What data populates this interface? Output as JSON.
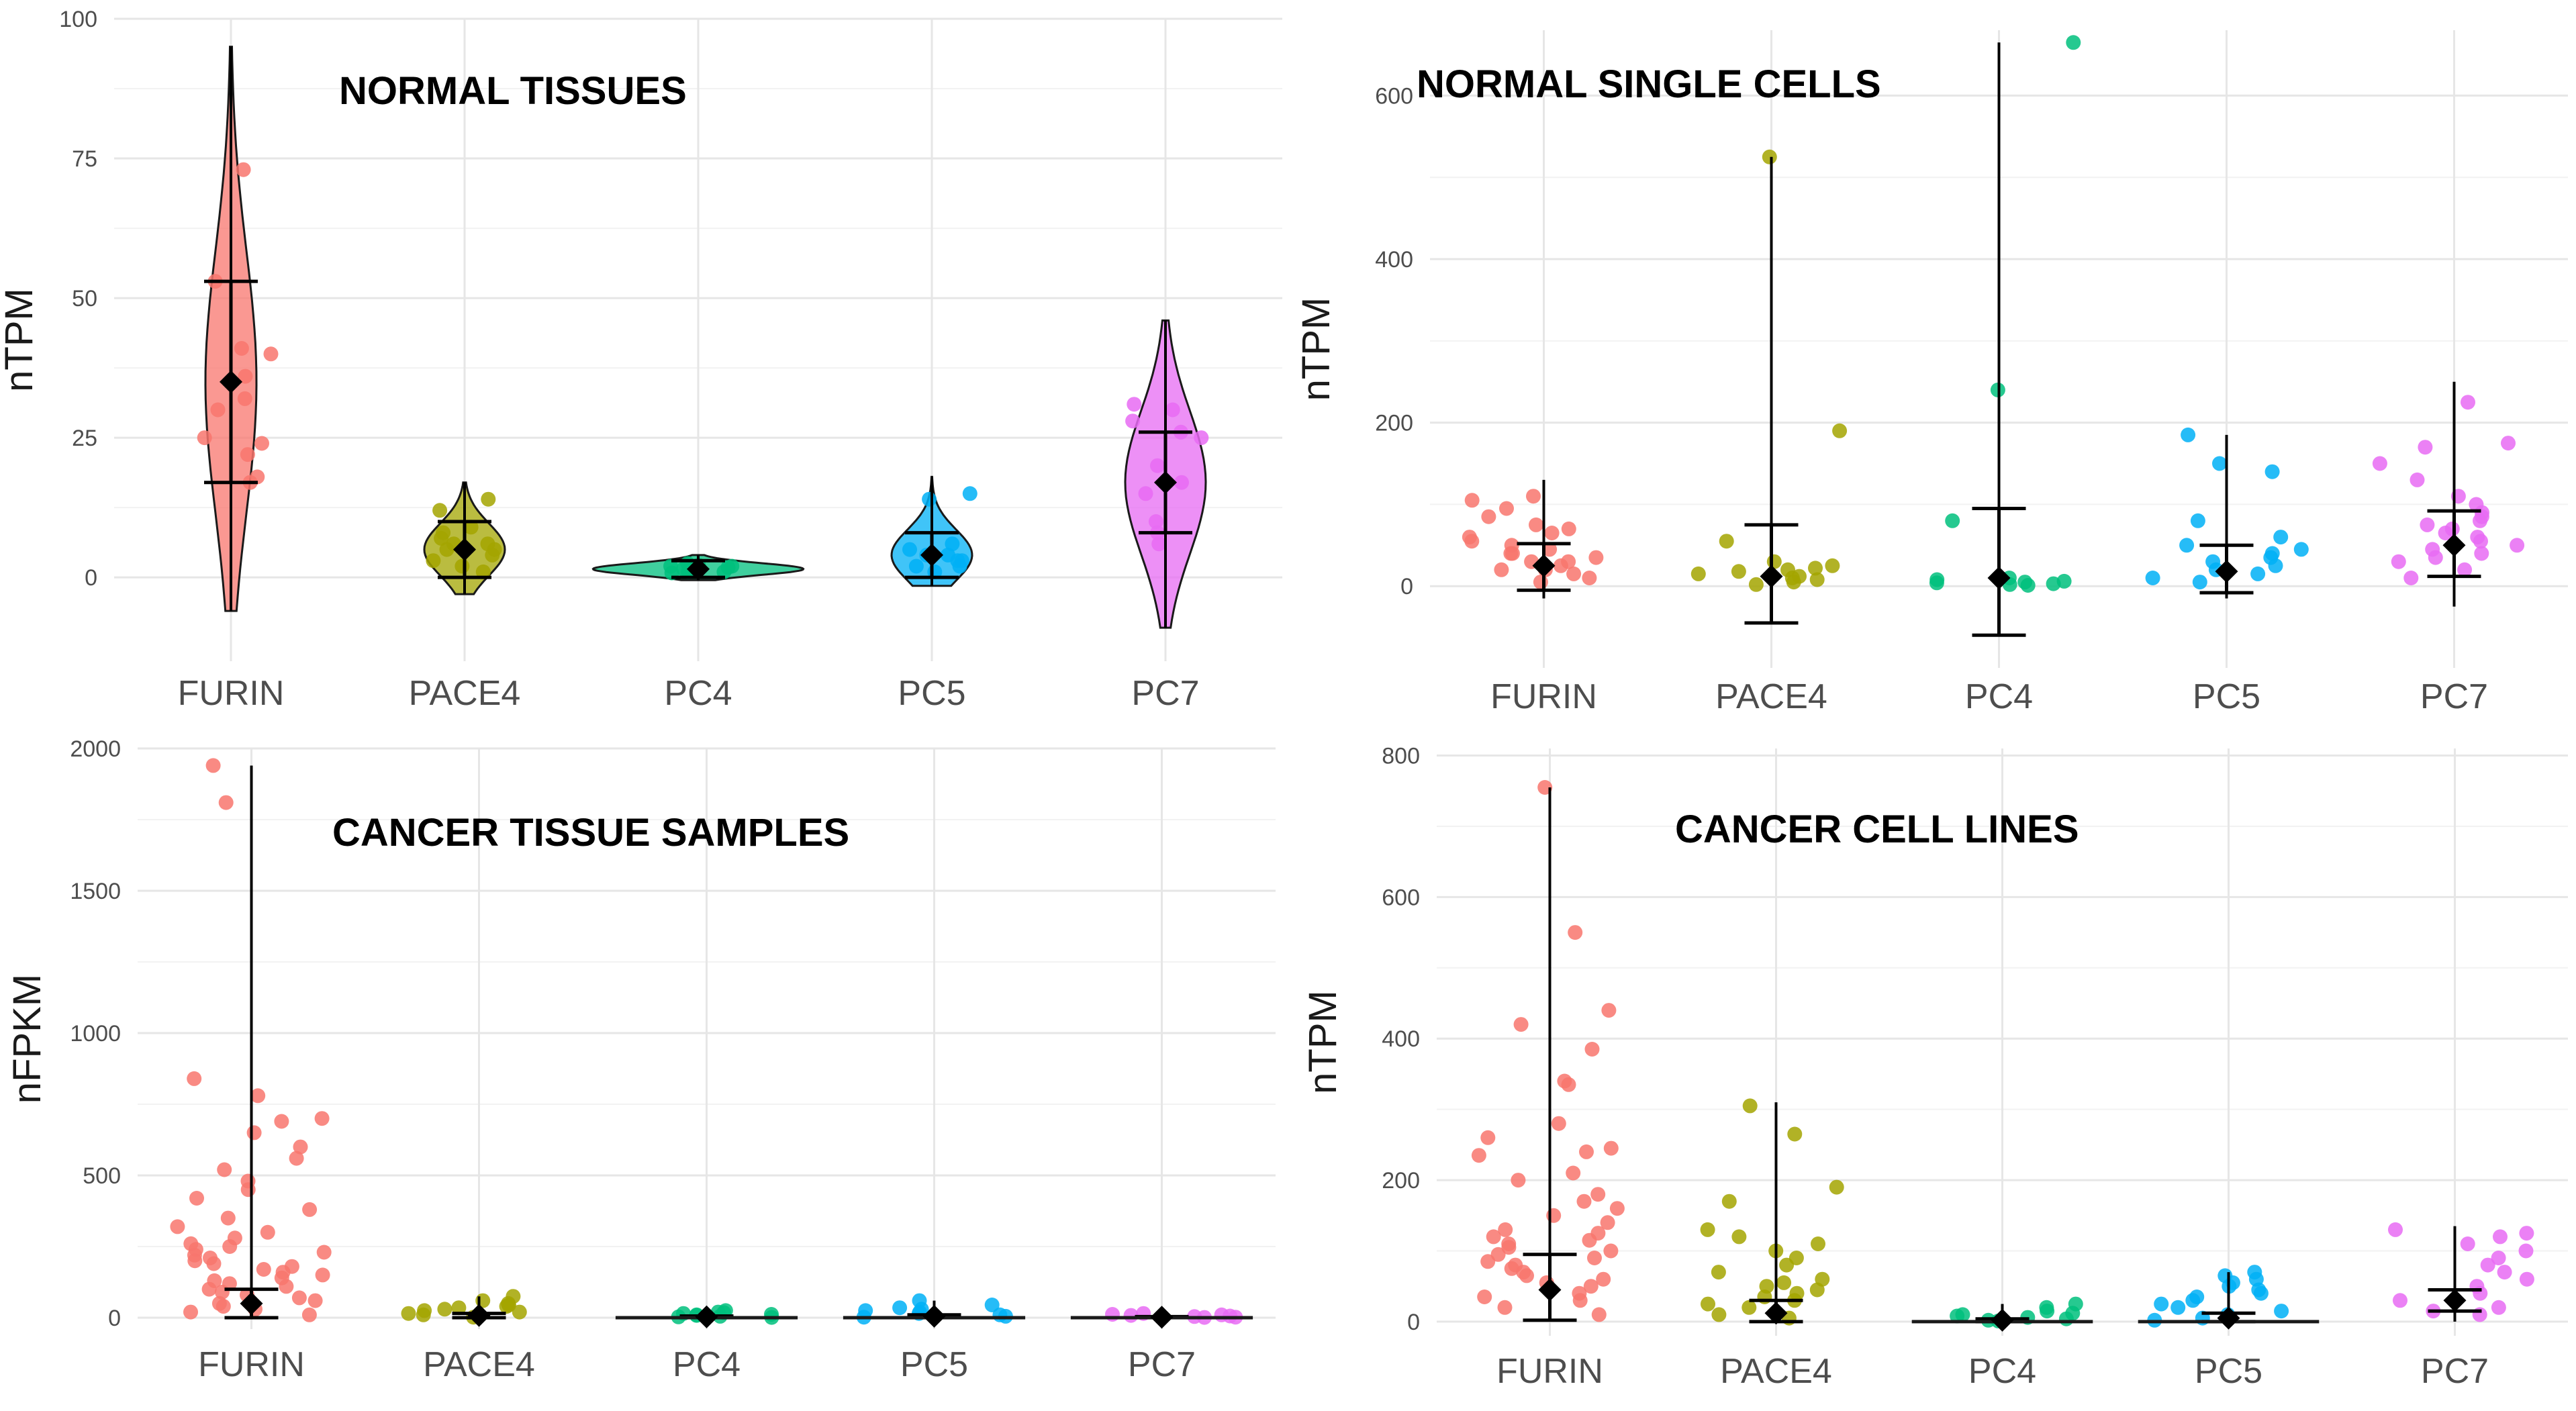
{
  "chart_data": [
    {
      "id": "normal-tissues",
      "type": "violin+jitter",
      "title": "NORMAL  TISSUES",
      "ylabel": "nTPM",
      "ylim": [
        -15,
        100
      ],
      "yticks": [
        0,
        25,
        50,
        75,
        100
      ],
      "categories": [
        "FURIN",
        "PACE4",
        "PC4",
        "PC5",
        "PC7"
      ],
      "colors": [
        "#F8766D",
        "#A3A500",
        "#00BF7D",
        "#00B0F6",
        "#E76BF3"
      ],
      "means": [
        35,
        5,
        1.5,
        4,
        17
      ],
      "err_low": [
        17,
        0,
        0,
        0,
        8
      ],
      "err_high": [
        53,
        10,
        3,
        8,
        26
      ],
      "min": [
        -6,
        -3,
        -0.5,
        -1.5,
        -9
      ],
      "max": [
        95,
        17,
        4,
        18,
        46
      ],
      "points": [
        [
          73,
          53,
          41,
          40,
          36,
          32,
          25,
          24,
          22,
          18,
          17,
          30
        ],
        [
          14,
          12,
          9,
          8,
          7,
          6,
          5,
          4,
          3,
          2,
          1,
          6,
          5
        ],
        [
          2.5,
          2,
          1.8,
          1.5,
          1.2,
          1,
          0.8,
          2,
          1.5,
          1,
          2.2
        ],
        [
          15,
          14,
          6,
          5,
          4,
          3,
          3,
          2,
          1,
          2,
          4
        ],
        [
          31,
          30,
          28,
          26,
          20,
          17,
          15,
          10,
          8,
          6,
          25
        ]
      ]
    },
    {
      "id": "normal-single-cells",
      "type": "jitter+errorbar",
      "title": "NORMAL  SINGLE  CELLS",
      "ylabel": "nTPM",
      "ylim": [
        -100,
        680
      ],
      "yticks": [
        0,
        200,
        400,
        600
      ],
      "categories": [
        "FURIN",
        "PACE4",
        "PC4",
        "PC5",
        "PC7"
      ],
      "colors": [
        "#F8766D",
        "#A3A500",
        "#00BF7D",
        "#00B0F6",
        "#E76BF3"
      ],
      "means": [
        25,
        12,
        10,
        18,
        50
      ],
      "err_low": [
        -5,
        -45,
        -60,
        -8,
        12
      ],
      "err_high": [
        52,
        75,
        95,
        50,
        92
      ],
      "min": [
        -15,
        -45,
        -60,
        -15,
        -25
      ],
      "max": [
        130,
        525,
        665,
        185,
        250
      ],
      "points": [
        [
          110,
          105,
          95,
          85,
          70,
          60,
          50,
          40,
          30,
          20,
          10,
          5,
          45,
          35,
          25,
          15,
          55,
          65,
          75,
          20,
          30,
          40
        ],
        [
          525,
          190,
          55,
          30,
          25,
          20,
          15,
          10,
          5,
          2,
          8,
          12,
          18,
          22
        ],
        [
          665,
          240,
          80,
          10,
          5,
          3,
          2,
          1,
          4,
          6,
          8
        ],
        [
          185,
          150,
          140,
          80,
          60,
          50,
          40,
          30,
          20,
          10,
          5,
          15,
          25,
          35,
          45
        ],
        [
          225,
          175,
          170,
          150,
          130,
          110,
          100,
          90,
          80,
          70,
          60,
          50,
          40,
          30,
          20,
          10,
          55,
          65,
          75,
          85,
          45,
          35
        ]
      ]
    },
    {
      "id": "cancer-tissue-samples",
      "type": "jitter+errorbar",
      "title": "CANCER  TISSUE  SAMPLES",
      "ylabel": "nFPKM",
      "ylim": [
        -40,
        2000
      ],
      "yticks": [
        0,
        500,
        1000,
        1500,
        2000
      ],
      "categories": [
        "FURIN",
        "PACE4",
        "PC4",
        "PC5",
        "PC7"
      ],
      "colors": [
        "#F8766D",
        "#A3A500",
        "#00BF7D",
        "#00B0F6",
        "#E76BF3"
      ],
      "means": [
        50,
        8,
        3,
        5,
        2
      ],
      "err_low": [
        0,
        0,
        0,
        0,
        0
      ],
      "err_high": [
        100,
        15,
        6,
        10,
        4
      ],
      "min": [
        0,
        0,
        0,
        0,
        0
      ],
      "max": [
        1940,
        75,
        25,
        60,
        15
      ],
      "points": [
        [
          1940,
          1810,
          840,
          780,
          700,
          690,
          650,
          600,
          560,
          520,
          480,
          450,
          420,
          380,
          350,
          320,
          300,
          280,
          260,
          240,
          220,
          200,
          180,
          160,
          140,
          120,
          100,
          80,
          60,
          40,
          20,
          10,
          250,
          230,
          210,
          190,
          170,
          150,
          130,
          110,
          90,
          70,
          50,
          30
        ],
        [
          75,
          60,
          50,
          40,
          30,
          25,
          20,
          15,
          10,
          5,
          2,
          35,
          45
        ],
        [
          25,
          20,
          15,
          10,
          8,
          5,
          3,
          1,
          12,
          18
        ],
        [
          60,
          45,
          35,
          25,
          20,
          15,
          10,
          5,
          2,
          30
        ],
        [
          15,
          12,
          10,
          8,
          6,
          4,
          2,
          1
        ]
      ]
    },
    {
      "id": "cancer-cell-lines",
      "type": "jitter+errorbar",
      "title": "CANCER  CELL  LINES",
      "ylabel": "nTPM",
      "ylim": [
        -20,
        810
      ],
      "yticks": [
        0,
        200,
        400,
        600,
        800
      ],
      "categories": [
        "FURIN",
        "PACE4",
        "PC4",
        "PC5",
        "PC7"
      ],
      "colors": [
        "#F8766D",
        "#A3A500",
        "#00BF7D",
        "#00B0F6",
        "#E76BF3"
      ],
      "means": [
        45,
        12,
        2,
        5,
        30
      ],
      "err_low": [
        2,
        0,
        0,
        0,
        15
      ],
      "err_high": [
        95,
        30,
        4,
        12,
        45
      ],
      "min": [
        0,
        0,
        0,
        0,
        0
      ],
      "max": [
        755,
        310,
        25,
        70,
        135
      ],
      "points": [
        [
          755,
          550,
          440,
          420,
          385,
          340,
          335,
          280,
          260,
          245,
          240,
          235,
          210,
          200,
          180,
          170,
          160,
          150,
          140,
          130,
          120,
          110,
          100,
          90,
          80,
          70,
          60,
          50,
          40,
          30,
          20,
          10,
          125,
          115,
          105,
          95,
          85,
          75,
          65,
          55,
          45,
          35
        ],
        [
          305,
          265,
          190,
          170,
          130,
          120,
          110,
          100,
          90,
          80,
          70,
          60,
          50,
          40,
          30,
          20,
          10,
          5,
          55,
          45,
          35,
          25
        ],
        [
          25,
          20,
          15,
          10,
          8,
          6,
          4,
          2,
          1,
          12
        ],
        [
          70,
          65,
          60,
          55,
          50,
          45,
          40,
          35,
          30,
          25,
          20,
          15,
          10,
          5,
          2
        ],
        [
          130,
          125,
          120,
          110,
          100,
          90,
          80,
          70,
          60,
          50,
          40,
          30,
          20,
          15,
          10
        ]
      ]
    }
  ]
}
